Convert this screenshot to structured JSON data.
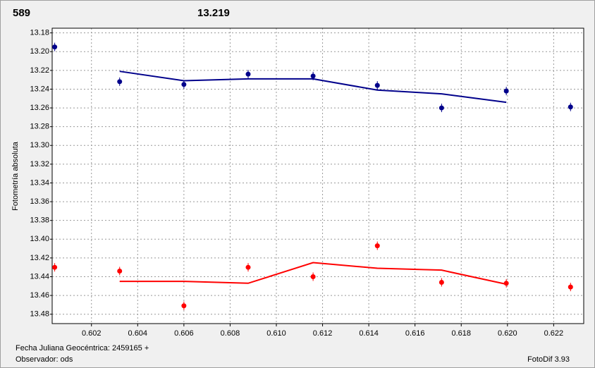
{
  "chart_data": {
    "type": "scatter",
    "title": "589",
    "subtitle": "13.219",
    "ylabel": "Fotometría absoluta",
    "xlabel": "Fecha Juliana Geocéntrica: 2459165 +",
    "annotations": [
      "Observador: ods",
      "FotoDif 3.93"
    ],
    "title_color": "#ff0000",
    "subtitle_color": "#1a1a8c",
    "x": [
      0.60041,
      0.60322,
      0.606,
      0.60878,
      0.61159,
      0.61437,
      0.61715,
      0.61995,
      0.62273
    ],
    "series": [
      {
        "mode": "markers",
        "color": "#00008b",
        "values": [
          13.195,
          13.232,
          13.235,
          13.224,
          13.226,
          13.236,
          13.26,
          13.242,
          13.259
        ]
      },
      {
        "mode": "line",
        "color": "#00008b",
        "values": [
          null,
          13.221,
          13.231,
          13.229,
          13.229,
          13.241,
          13.245,
          13.254,
          null
        ]
      },
      {
        "mode": "markers",
        "color": "#ff0000",
        "values": [
          13.43,
          13.434,
          13.471,
          13.43,
          13.44,
          13.407,
          13.446,
          13.447,
          13.451
        ]
      },
      {
        "mode": "line",
        "color": "#ff0000",
        "values": [
          null,
          13.445,
          13.445,
          13.447,
          13.425,
          13.431,
          13.433,
          13.448,
          null
        ]
      }
    ],
    "xlim": [
      0.6003,
      0.6233
    ],
    "ylim": [
      13.175,
      13.49
    ],
    "y_inverted": true,
    "xticks": [
      0.602,
      0.604,
      0.606,
      0.608,
      {
        "value": 0.61,
        "label": "0.610"
      },
      0.612,
      0.614,
      0.616,
      0.618,
      {
        "value": 0.62,
        "label": "0.620"
      },
      0.622
    ],
    "yticks": [
      13.18,
      {
        "value": 13.2,
        "label": "13.20"
      },
      13.22,
      13.24,
      13.26,
      13.28,
      {
        "value": 13.3,
        "label": "13.30"
      },
      13.32,
      13.34,
      13.36,
      13.38,
      {
        "value": 13.4,
        "label": "13.40"
      },
      13.42,
      13.44,
      13.46,
      13.48
    ],
    "grid": true
  }
}
